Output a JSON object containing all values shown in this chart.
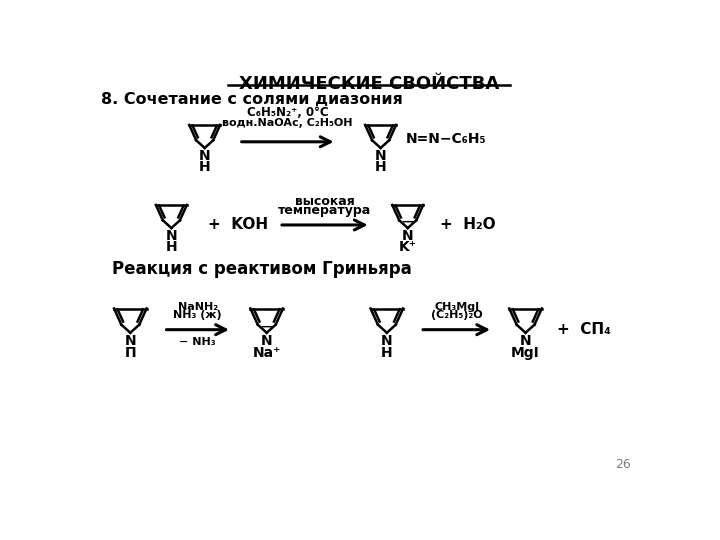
{
  "title": "ХИМИЧЕСКИЕ СВОЙСТВА",
  "section1": "8. Сочетание с солями диазония",
  "section2": "Реакция с реактивом Гриньяра",
  "bg_color": "#ffffff",
  "text_color": "#000000",
  "page_number": "26",
  "r1_cond1": "C₆H₅N₂⁺, 0°C",
  "r1_cond2": "водн.NaOAc, C₂H₅OH",
  "r1_product": "N=N−C₆H₅",
  "r2_reagent": "+  KOH",
  "r2_cond1": "высокая",
  "r2_cond2": "температура",
  "r2_product": "+  H₂O",
  "r3_cond1": "NaNH₂",
  "r3_cond2": "NH₃ (ж)",
  "r3_cond3": "− NH₃",
  "r4_cond1": "CH₃MgI",
  "r4_cond2": "(C₂H₅)₂O",
  "r4_product": "+  СП₄",
  "label_pi": "П",
  "label_H": "H",
  "label_Kplus": "K⁺",
  "label_Naplus": "Na⁺",
  "label_MgI": "MgI"
}
